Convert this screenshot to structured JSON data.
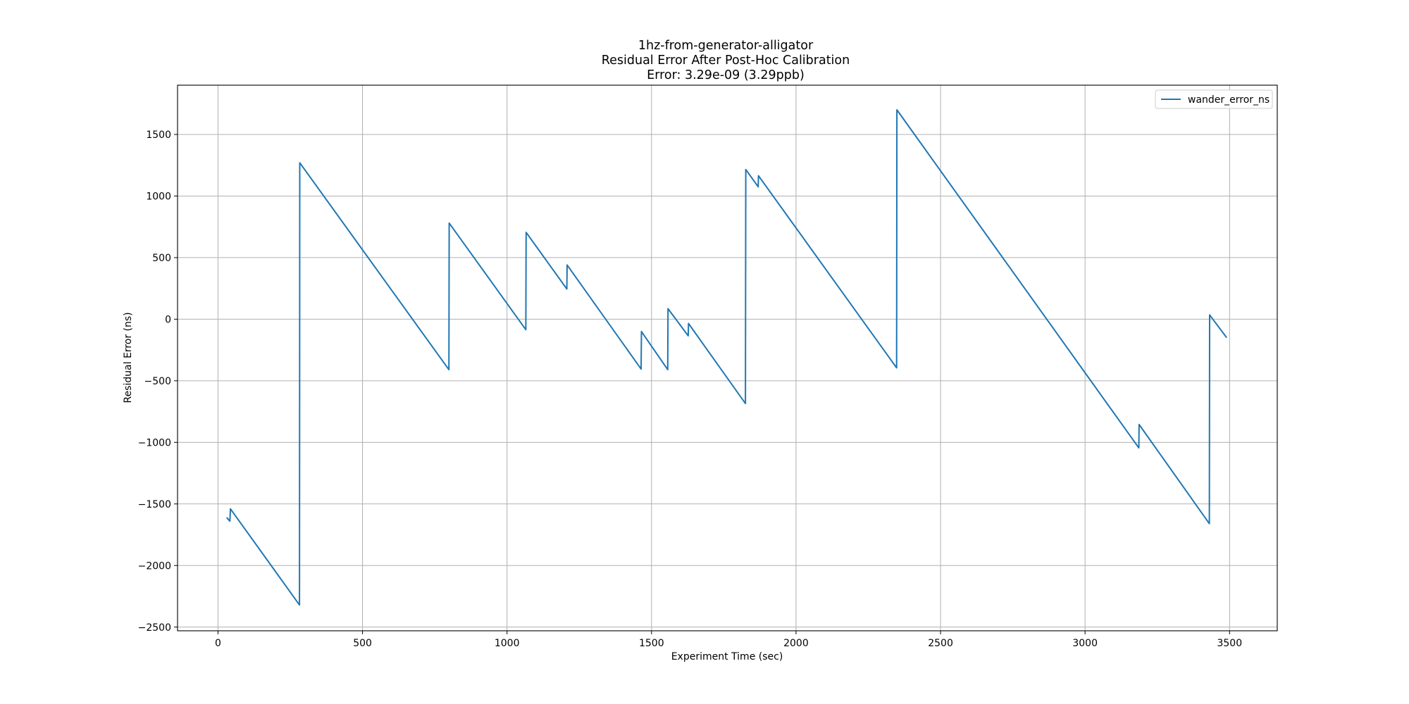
{
  "chart_data": {
    "type": "line",
    "title": "1hz-from-generator-alligator",
    "subtitle": "Residual Error After Post-Hoc Calibration",
    "subtitle2": "Error: 3.29e-09 (3.29ppb)",
    "xlabel": "Experiment Time (sec)",
    "ylabel": "Residual Error (ns)",
    "xlim": [
      -140,
      3665
    ],
    "ylim": [
      -2530,
      1900
    ],
    "xticks": [
      0,
      500,
      1000,
      1500,
      2000,
      2500,
      3000,
      3500
    ],
    "xtick_labels": [
      "0",
      "500",
      "1000",
      "1500",
      "2000",
      "2500",
      "3000",
      "3500"
    ],
    "yticks": [
      -2500,
      -2000,
      -1500,
      -1000,
      -500,
      0,
      500,
      1000,
      1500
    ],
    "ytick_labels": [
      "−2500",
      "−2000",
      "−1500",
      "−1000",
      "−500",
      "0",
      "500",
      "1000",
      "1500"
    ],
    "grid": true,
    "legend_position": "top-right",
    "color": "#1f77b4",
    "series": [
      {
        "name": "wander_error_ns",
        "x": [
          30,
          41,
          43,
          282,
          283,
          799,
          800,
          1065,
          1066,
          1207,
          1208,
          1464,
          1465,
          1556,
          1557,
          1627,
          1628,
          1825,
          1826,
          1869,
          1870,
          2348,
          2349,
          3186,
          3187,
          3430,
          3431,
          3490
        ],
        "y": [
          -1610,
          -1640,
          -1540,
          -2320,
          1270,
          -410,
          780,
          -85,
          705,
          245,
          440,
          -405,
          -100,
          -410,
          85,
          -135,
          -35,
          -685,
          1215,
          1075,
          1165,
          -395,
          1700,
          -1045,
          -855,
          -1660,
          35,
          -150
        ]
      }
    ]
  }
}
